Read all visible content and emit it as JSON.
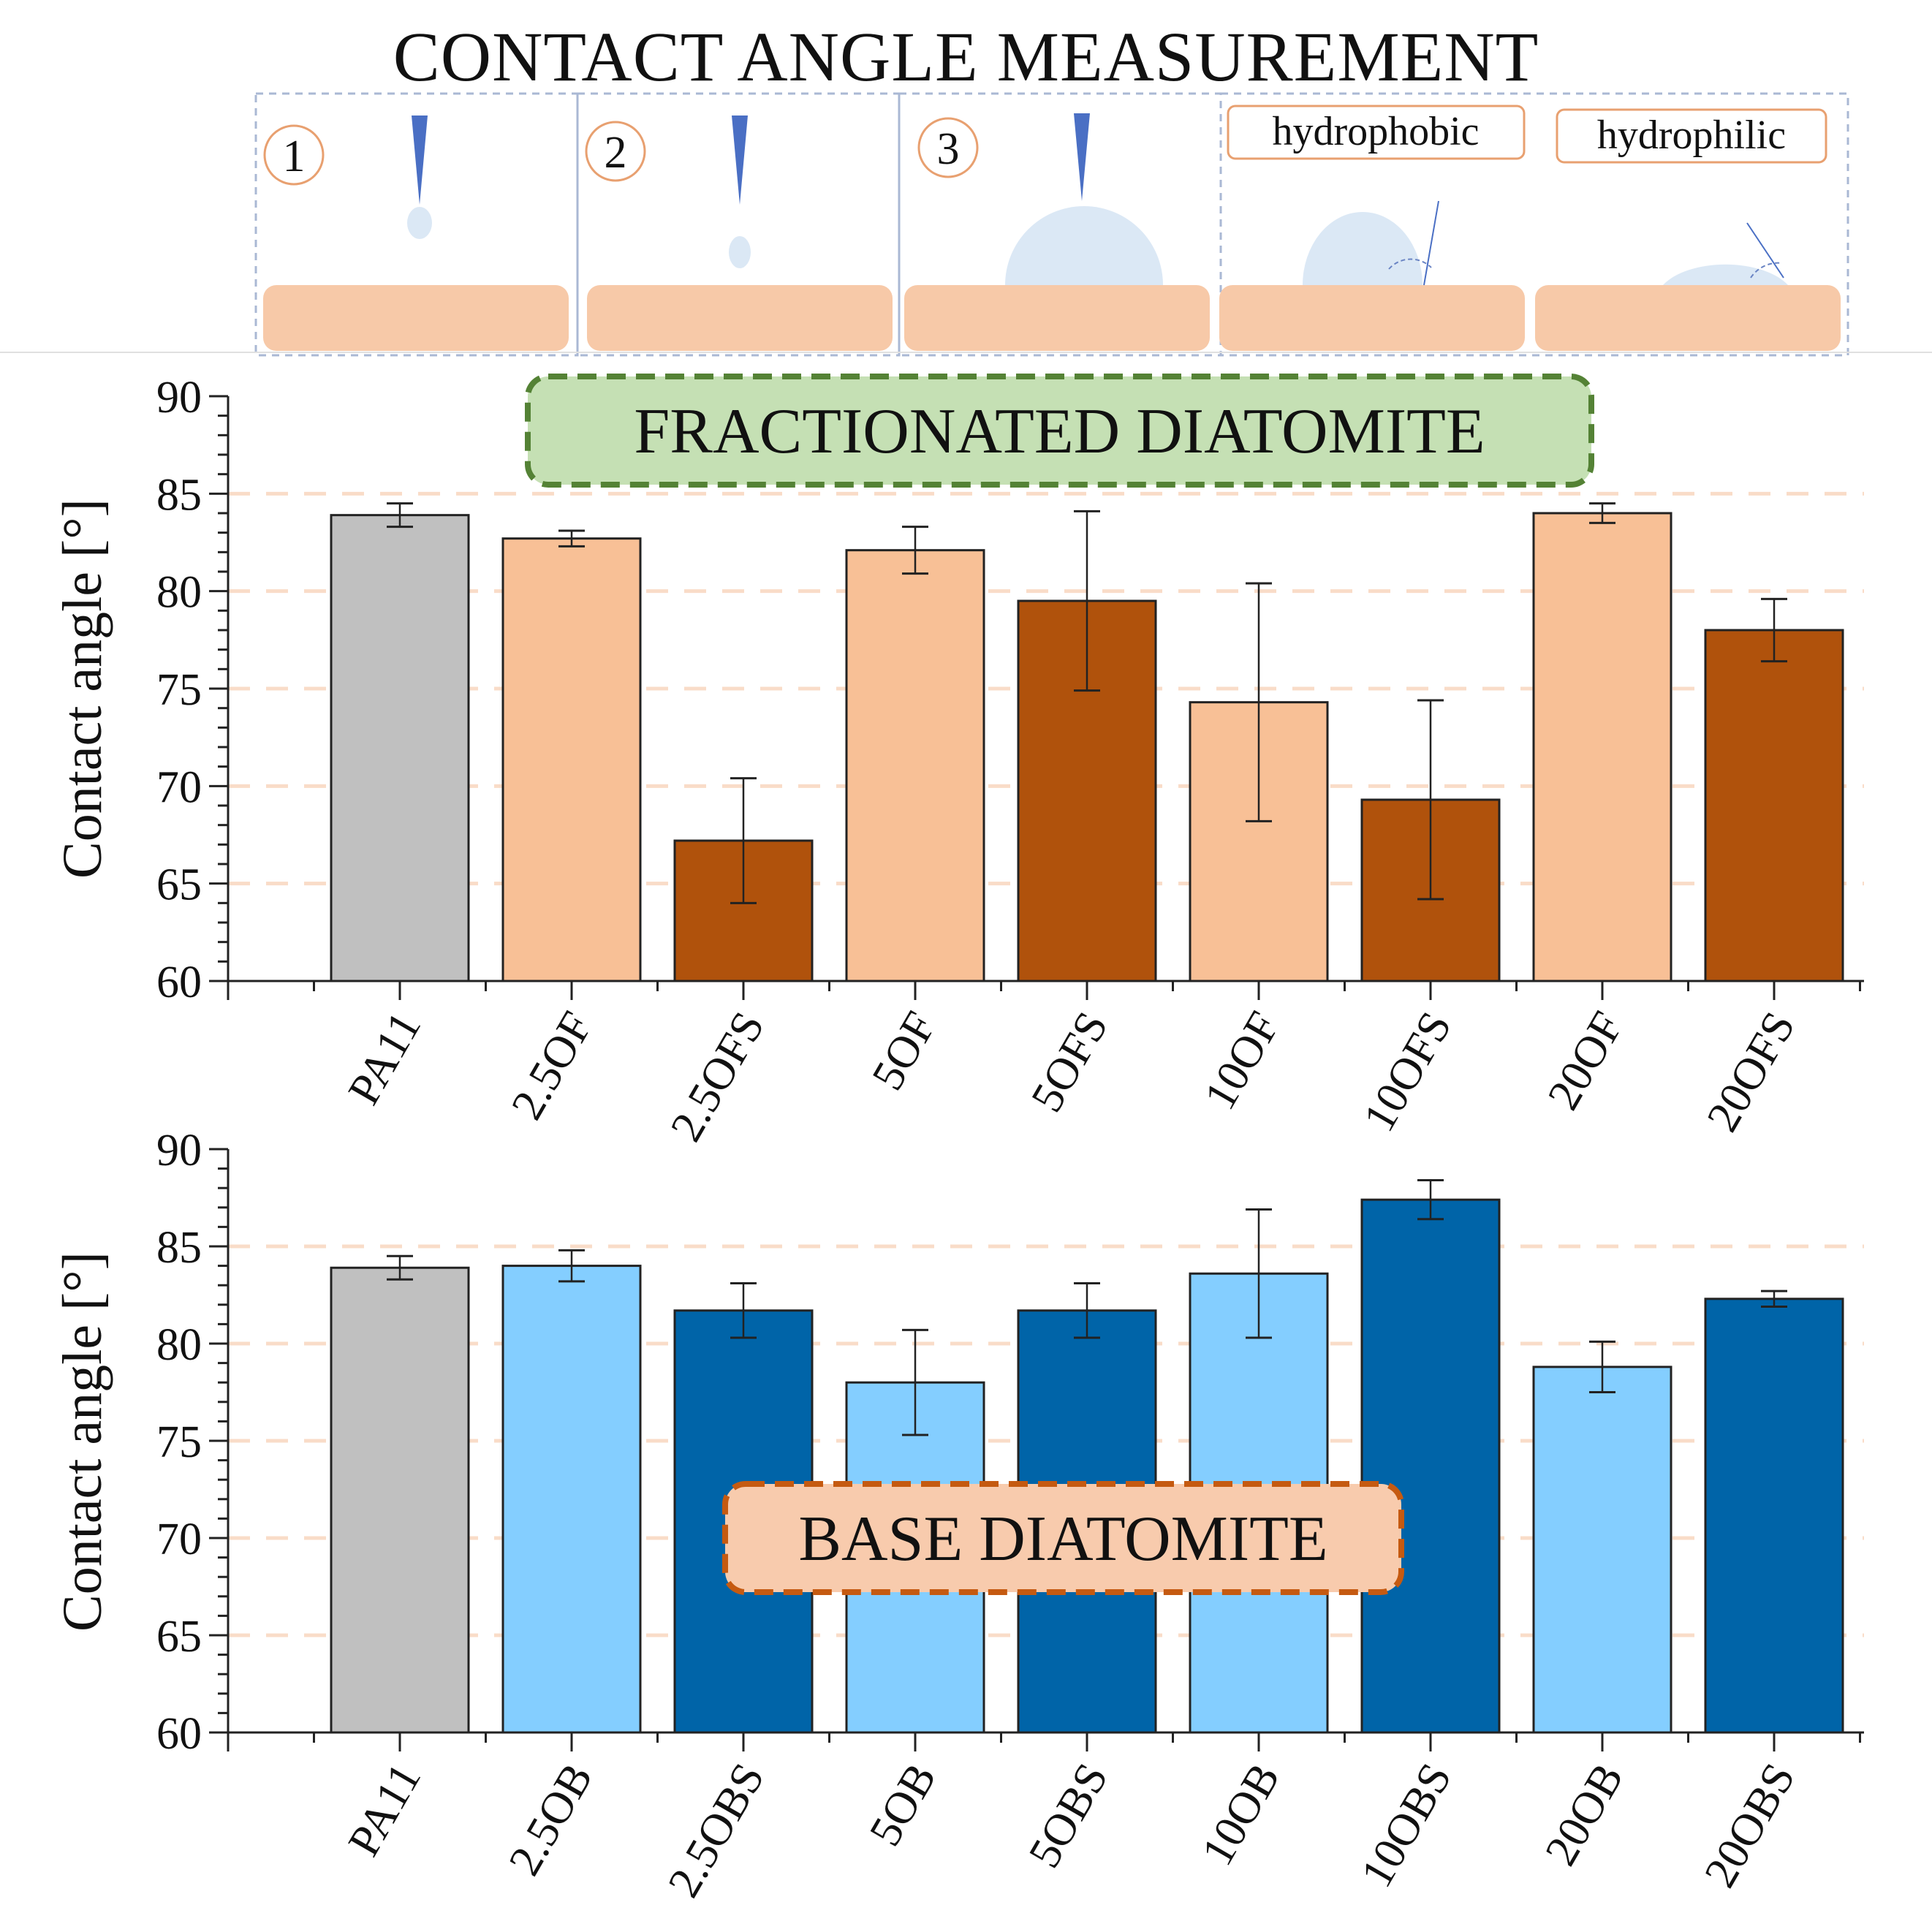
{
  "title": "CONTACT ANGLE MEASUREMENT",
  "diagram": {
    "steps": [
      "1",
      "2",
      "3"
    ],
    "label_hydrophobic": "hydrophobic",
    "label_hydrophilic": "hydrophilic"
  },
  "colors": {
    "gray": "#c0c0c0",
    "light_orange": "#f8c096",
    "dark_orange": "#b0520c",
    "light_blue": "#84ceff",
    "dark_blue": "#0064a8",
    "substrate": "#f7c9a8",
    "drop": "#dbe8f5",
    "needle": "#4a6fc4",
    "green_box": "#c5e0b4",
    "green_border": "#548235",
    "orange_box": "#f8cbad",
    "orange_border": "#c55a11",
    "grid": "#f9dcc8"
  },
  "chart_data": [
    {
      "type": "bar",
      "title": "FRACTIONATED DIATOMITE",
      "ylabel": "Contact angle [°]",
      "xlabel": "",
      "ylim": [
        60,
        90
      ],
      "yticks": [
        "60",
        "65",
        "70",
        "75",
        "80",
        "85",
        "90"
      ],
      "grid": true,
      "categories": [
        "PA11",
        "2.5OF",
        "2.5OFS",
        "5OF",
        "5OFS",
        "10OF",
        "10OFS",
        "20OF",
        "20OFS"
      ],
      "values": [
        83.9,
        82.7,
        67.2,
        82.1,
        79.5,
        74.3,
        69.3,
        84.0,
        78.0
      ],
      "errors": [
        0.6,
        0.4,
        3.2,
        1.2,
        4.6,
        6.1,
        5.1,
        0.5,
        1.6
      ],
      "bar_colors": [
        "gray",
        "light_orange",
        "dark_orange",
        "light_orange",
        "dark_orange",
        "light_orange",
        "dark_orange",
        "light_orange",
        "dark_orange"
      ]
    },
    {
      "type": "bar",
      "title": "BASE DIATOMITE",
      "ylabel": "Contact angle [°]",
      "xlabel": "",
      "ylim": [
        60,
        90
      ],
      "yticks": [
        "60",
        "65",
        "70",
        "75",
        "80",
        "85",
        "90"
      ],
      "grid": true,
      "categories": [
        "PA11",
        "2.5OB",
        "2.5OBS",
        "5OB",
        "5OBS",
        "10OB",
        "10OBS",
        "20OB",
        "20OBS"
      ],
      "values": [
        83.9,
        84.0,
        81.7,
        78.0,
        81.7,
        83.6,
        87.4,
        78.8,
        82.3
      ],
      "errors": [
        0.6,
        0.8,
        1.4,
        2.7,
        1.4,
        3.3,
        1.0,
        1.3,
        0.4
      ],
      "bar_colors": [
        "gray",
        "light_blue",
        "dark_blue",
        "light_blue",
        "dark_blue",
        "light_blue",
        "dark_blue",
        "light_blue",
        "dark_blue"
      ]
    }
  ]
}
